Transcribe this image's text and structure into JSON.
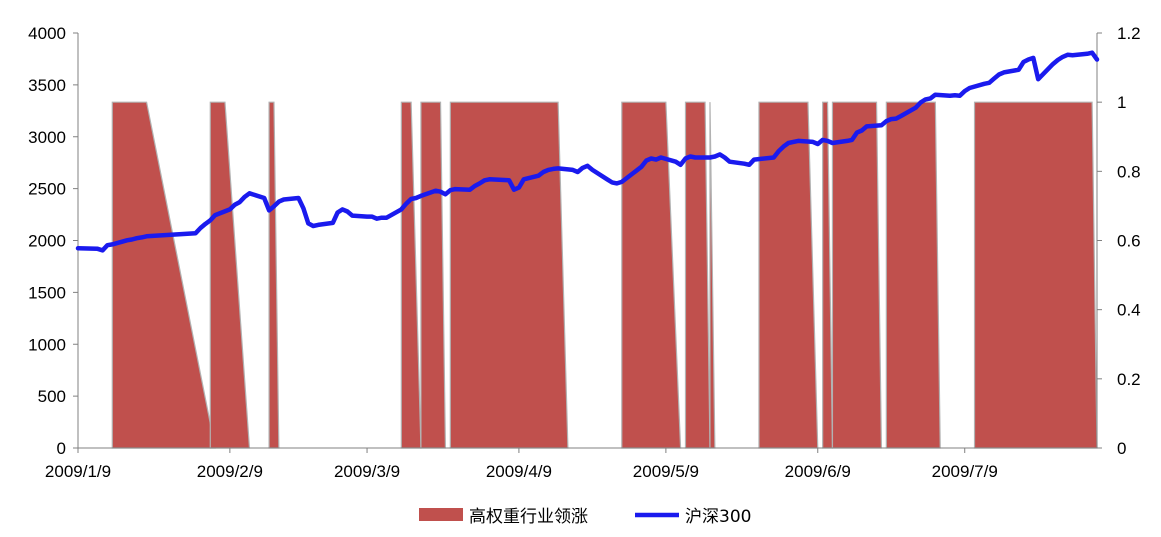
{
  "chart_data": {
    "type": "area",
    "title": "",
    "grid": false,
    "legend_position": "bottom-center",
    "y_left": {
      "lim": [
        0,
        4000
      ],
      "ticks": [
        "0",
        "500",
        "1000",
        "1500",
        "2000",
        "2500",
        "3000",
        "3500",
        "4000"
      ]
    },
    "y_right": {
      "lim": [
        0,
        1.2
      ],
      "ticks": [
        "0",
        "0.2",
        "0.4",
        "0.6",
        "0.8",
        "1",
        "1.2"
      ]
    },
    "x_ticks": [
      "2009/1/9",
      "2009/2/9",
      "2009/3/9",
      "2009/4/9",
      "2009/5/9",
      "2009/6/9",
      "2009/7/9"
    ],
    "x_tick_dates": [
      "2009-01-09",
      "2009-02-09",
      "2009-03-09",
      "2009-04-09",
      "2009-05-09",
      "2009-06-09",
      "2009-07-09"
    ],
    "x_range": [
      "2009-01-09",
      "2009-08-05"
    ],
    "series": [
      {
        "name": "高权重行业领涨",
        "axis": "right",
        "kind": "area",
        "color": "#c0504d",
        "edge_color": "#b2b2b2",
        "value_when_on": 1,
        "on_periods": [
          [
            "2009-01-16",
            "2009-01-23",
            "2009-02-06"
          ],
          [
            "2009-02-05",
            "2009-02-08",
            "2009-02-13"
          ],
          [
            "2009-02-17",
            "2009-02-18",
            "2009-02-19"
          ],
          [
            "2009-03-16",
            "2009-03-18",
            "2009-03-20"
          ],
          [
            "2009-03-20",
            "2009-03-24",
            "2009-03-25"
          ],
          [
            "2009-03-26",
            "2009-04-17",
            "2009-04-19"
          ],
          [
            "2009-04-30",
            "2009-05-09",
            "2009-05-12"
          ],
          [
            "2009-05-13",
            "2009-05-17",
            "2009-05-18"
          ],
          [
            "2009-05-18",
            "2009-05-18",
            "2009-05-19"
          ],
          [
            "2009-05-28",
            "2009-06-07",
            "2009-06-09"
          ],
          [
            "2009-06-10",
            "2009-06-11",
            "2009-06-12"
          ],
          [
            "2009-06-12",
            "2009-06-21",
            "2009-06-22"
          ],
          [
            "2009-06-23",
            "2009-07-03",
            "2009-07-04"
          ],
          [
            "2009-07-11",
            "2009-08-04",
            "2009-08-05"
          ]
        ]
      },
      {
        "name": "沪深300",
        "axis": "left",
        "kind": "line",
        "color": "#1a1aee",
        "points": [
          [
            "2009-01-09",
            1925
          ],
          [
            "2009-01-12",
            1922
          ],
          [
            "2009-01-13",
            1920
          ],
          [
            "2009-01-14",
            1905
          ],
          [
            "2009-01-15",
            1955
          ],
          [
            "2009-01-16",
            1962
          ],
          [
            "2009-01-19",
            2002
          ],
          [
            "2009-01-20",
            2010
          ],
          [
            "2009-01-21",
            2022
          ],
          [
            "2009-01-22",
            2030
          ],
          [
            "2009-01-23",
            2040
          ],
          [
            "2009-02-02",
            2070
          ],
          [
            "2009-02-03",
            2120
          ],
          [
            "2009-02-04",
            2160
          ],
          [
            "2009-02-05",
            2195
          ],
          [
            "2009-02-06",
            2245
          ],
          [
            "2009-02-09",
            2300
          ],
          [
            "2009-02-10",
            2345
          ],
          [
            "2009-02-11",
            2370
          ],
          [
            "2009-02-12",
            2420
          ],
          [
            "2009-02-13",
            2455
          ],
          [
            "2009-02-16",
            2410
          ],
          [
            "2009-02-17",
            2290
          ],
          [
            "2009-02-18",
            2330
          ],
          [
            "2009-02-19",
            2375
          ],
          [
            "2009-02-20",
            2395
          ],
          [
            "2009-02-23",
            2410
          ],
          [
            "2009-02-24",
            2310
          ],
          [
            "2009-02-25",
            2165
          ],
          [
            "2009-02-26",
            2140
          ],
          [
            "2009-02-27",
            2150
          ],
          [
            "2009-03-02",
            2170
          ],
          [
            "2009-03-03",
            2270
          ],
          [
            "2009-03-04",
            2300
          ],
          [
            "2009-03-05",
            2280
          ],
          [
            "2009-03-06",
            2240
          ],
          [
            "2009-03-09",
            2230
          ],
          [
            "2009-03-10",
            2230
          ],
          [
            "2009-03-11",
            2210
          ],
          [
            "2009-03-12",
            2220
          ],
          [
            "2009-03-13",
            2220
          ],
          [
            "2009-03-16",
            2300
          ],
          [
            "2009-03-17",
            2355
          ],
          [
            "2009-03-18",
            2400
          ],
          [
            "2009-03-19",
            2410
          ],
          [
            "2009-03-20",
            2430
          ],
          [
            "2009-03-23",
            2480
          ],
          [
            "2009-03-24",
            2470
          ],
          [
            "2009-03-25",
            2445
          ],
          [
            "2009-03-26",
            2485
          ],
          [
            "2009-03-27",
            2495
          ],
          [
            "2009-03-30",
            2490
          ],
          [
            "2009-03-31",
            2525
          ],
          [
            "2009-04-01",
            2550
          ],
          [
            "2009-04-02",
            2580
          ],
          [
            "2009-04-03",
            2590
          ],
          [
            "2009-04-07",
            2580
          ],
          [
            "2009-04-08",
            2490
          ],
          [
            "2009-04-09",
            2510
          ],
          [
            "2009-04-10",
            2590
          ],
          [
            "2009-04-13",
            2625
          ],
          [
            "2009-04-14",
            2660
          ],
          [
            "2009-04-15",
            2680
          ],
          [
            "2009-04-16",
            2690
          ],
          [
            "2009-04-17",
            2695
          ],
          [
            "2009-04-20",
            2680
          ],
          [
            "2009-04-21",
            2660
          ],
          [
            "2009-04-22",
            2700
          ],
          [
            "2009-04-23",
            2720
          ],
          [
            "2009-04-24",
            2680
          ],
          [
            "2009-04-27",
            2590
          ],
          [
            "2009-04-28",
            2560
          ],
          [
            "2009-04-29",
            2550
          ],
          [
            "2009-04-30",
            2565
          ],
          [
            "2009-05-04",
            2710
          ],
          [
            "2009-05-05",
            2770
          ],
          [
            "2009-05-06",
            2790
          ],
          [
            "2009-05-07",
            2780
          ],
          [
            "2009-05-08",
            2800
          ],
          [
            "2009-05-11",
            2760
          ],
          [
            "2009-05-12",
            2730
          ],
          [
            "2009-05-13",
            2790
          ],
          [
            "2009-05-14",
            2810
          ],
          [
            "2009-05-15",
            2800
          ],
          [
            "2009-05-18",
            2800
          ],
          [
            "2009-05-19",
            2810
          ],
          [
            "2009-05-20",
            2830
          ],
          [
            "2009-05-21",
            2800
          ],
          [
            "2009-05-22",
            2760
          ],
          [
            "2009-05-25",
            2740
          ],
          [
            "2009-05-26",
            2730
          ],
          [
            "2009-05-27",
            2780
          ],
          [
            "2009-05-31",
            2800
          ],
          [
            "2009-06-01",
            2860
          ],
          [
            "2009-06-02",
            2905
          ],
          [
            "2009-06-03",
            2940
          ],
          [
            "2009-06-04",
            2950
          ],
          [
            "2009-06-05",
            2960
          ],
          [
            "2009-06-08",
            2950
          ],
          [
            "2009-06-09",
            2930
          ],
          [
            "2009-06-10",
            2970
          ],
          [
            "2009-06-11",
            2960
          ],
          [
            "2009-06-12",
            2940
          ],
          [
            "2009-06-15",
            2960
          ],
          [
            "2009-06-16",
            2970
          ],
          [
            "2009-06-17",
            3040
          ],
          [
            "2009-06-18",
            3060
          ],
          [
            "2009-06-19",
            3100
          ],
          [
            "2009-06-22",
            3110
          ],
          [
            "2009-06-23",
            3150
          ],
          [
            "2009-06-24",
            3170
          ],
          [
            "2009-06-25",
            3175
          ],
          [
            "2009-06-26",
            3200
          ],
          [
            "2009-06-29",
            3280
          ],
          [
            "2009-06-30",
            3330
          ],
          [
            "2009-07-01",
            3360
          ],
          [
            "2009-07-02",
            3370
          ],
          [
            "2009-07-03",
            3405
          ],
          [
            "2009-07-06",
            3395
          ],
          [
            "2009-07-07",
            3400
          ],
          [
            "2009-07-08",
            3395
          ],
          [
            "2009-07-09",
            3440
          ],
          [
            "2009-07-10",
            3470
          ],
          [
            "2009-07-13",
            3510
          ],
          [
            "2009-07-14",
            3520
          ],
          [
            "2009-07-15",
            3560
          ],
          [
            "2009-07-16",
            3600
          ],
          [
            "2009-07-17",
            3620
          ],
          [
            "2009-07-20",
            3645
          ],
          [
            "2009-07-21",
            3720
          ],
          [
            "2009-07-22",
            3745
          ],
          [
            "2009-07-23",
            3760
          ],
          [
            "2009-07-24",
            3555
          ],
          [
            "2009-07-27",
            3700
          ],
          [
            "2009-07-28",
            3740
          ],
          [
            "2009-07-29",
            3770
          ],
          [
            "2009-07-30",
            3790
          ],
          [
            "2009-07-31",
            3785
          ],
          [
            "2009-08-03",
            3800
          ],
          [
            "2009-08-04",
            3810
          ],
          [
            "2009-08-05",
            3745
          ]
        ]
      }
    ]
  }
}
